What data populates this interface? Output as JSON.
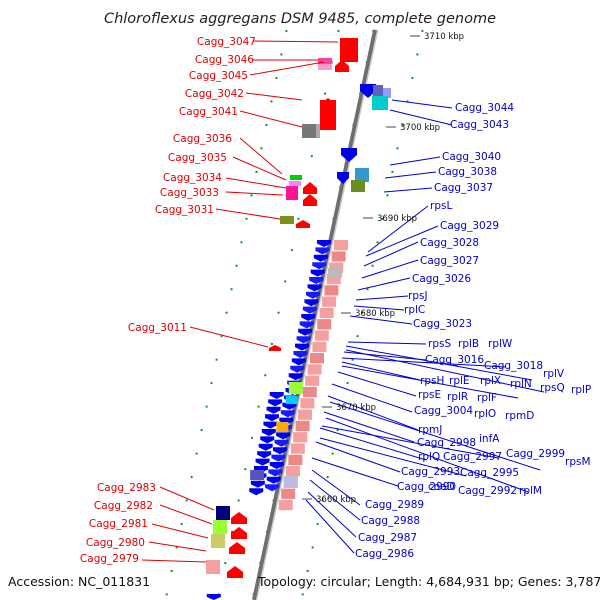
{
  "title": "Chloroflexus aggregans DSM 9485, complete genome",
  "footer": {
    "accession": "Accession: NC_011831",
    "summary": "Topology: circular; Length: 4,684,931 bp; Genes: 3,787"
  },
  "scale_labels": [
    "3710 kbp",
    "3700 kbp",
    "3690 kbp",
    "3680 kbp",
    "3670 kbp",
    "3660 kbp"
  ],
  "left_labels": [
    "Cagg_3047",
    "Cagg_3046",
    "Cagg_3045",
    "Cagg_3042",
    "Cagg_3041",
    "Cagg_3036",
    "Cagg_3035",
    "Cagg_3034",
    "Cagg_3033",
    "Cagg_3031",
    "Cagg_3011",
    "Cagg_2983",
    "Cagg_2982",
    "Cagg_2981",
    "Cagg_2980",
    "Cagg_2979"
  ],
  "right_labels": [
    "Cagg_3044",
    "Cagg_3043",
    "Cagg_3040",
    "Cagg_3038",
    "Cagg_3037",
    "rpsL",
    "Cagg_3029",
    "Cagg_3028",
    "Cagg_3027",
    "Cagg_3026",
    "rpsJ",
    "rplC",
    "Cagg_3023",
    "rpsS",
    "rplB",
    "rplW",
    "Cagg_3016",
    "Cagg_3018",
    "rplV",
    "rpsH",
    "rplE",
    "rplX",
    "rplN",
    "rpsQ",
    "rplP",
    "rpsE",
    "rplR",
    "rplF",
    "Cagg_3004",
    "rplO",
    "rpmD",
    "rpmJ",
    "infA",
    "Cagg_2998",
    "rplQ",
    "Cagg_2997",
    "Cagg_2999",
    "rpsM",
    "Cagg_2993",
    "Cagg_2995",
    "Cagg_2990",
    "coaD",
    "Cagg_2992",
    "rplM",
    "Cagg_2989",
    "Cagg_2988",
    "Cagg_2987",
    "Cagg_2986"
  ],
  "colors": {
    "forward_label": "#e00000",
    "reverse_label": "#0000cc",
    "forward_gene": "#ff0000",
    "reverse_gene": "#0000ee",
    "backbone": "#8c8c8c",
    "tick": "#0a9a0a",
    "ribosomal_block": "#f4a0a0"
  }
}
